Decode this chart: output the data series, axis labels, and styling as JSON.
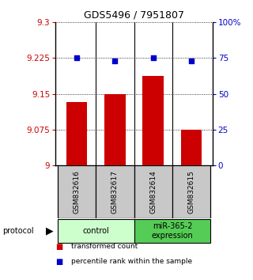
{
  "title": "GDS5496 / 7951807",
  "samples": [
    "GSM832616",
    "GSM832617",
    "GSM832614",
    "GSM832615"
  ],
  "bar_values": [
    9.132,
    9.15,
    9.187,
    9.075
  ],
  "dot_values": [
    75,
    73,
    75,
    73
  ],
  "ylim_left": [
    9.0,
    9.3
  ],
  "ylim_right": [
    0,
    100
  ],
  "yticks_left": [
    9.0,
    9.075,
    9.15,
    9.225,
    9.3
  ],
  "yticks_right": [
    0,
    25,
    50,
    75,
    100
  ],
  "ytick_labels_left": [
    "9",
    "9.075",
    "9.15",
    "9.225",
    "9.3"
  ],
  "ytick_labels_right": [
    "0",
    "25",
    "50",
    "75",
    "100%"
  ],
  "bar_color": "#cc0000",
  "dot_color": "#0000cc",
  "groups": [
    {
      "label": "control",
      "color": "#ccffcc"
    },
    {
      "label": "miR-365-2\nexpression",
      "color": "#55cc55"
    }
  ],
  "protocol_label": "protocol",
  "legend_items": [
    {
      "color": "#cc0000",
      "label": "transformed count"
    },
    {
      "color": "#0000cc",
      "label": "percentile rank within the sample"
    }
  ],
  "sample_box_color": "#c8c8c8",
  "xlim": [
    -0.55,
    3.55
  ]
}
